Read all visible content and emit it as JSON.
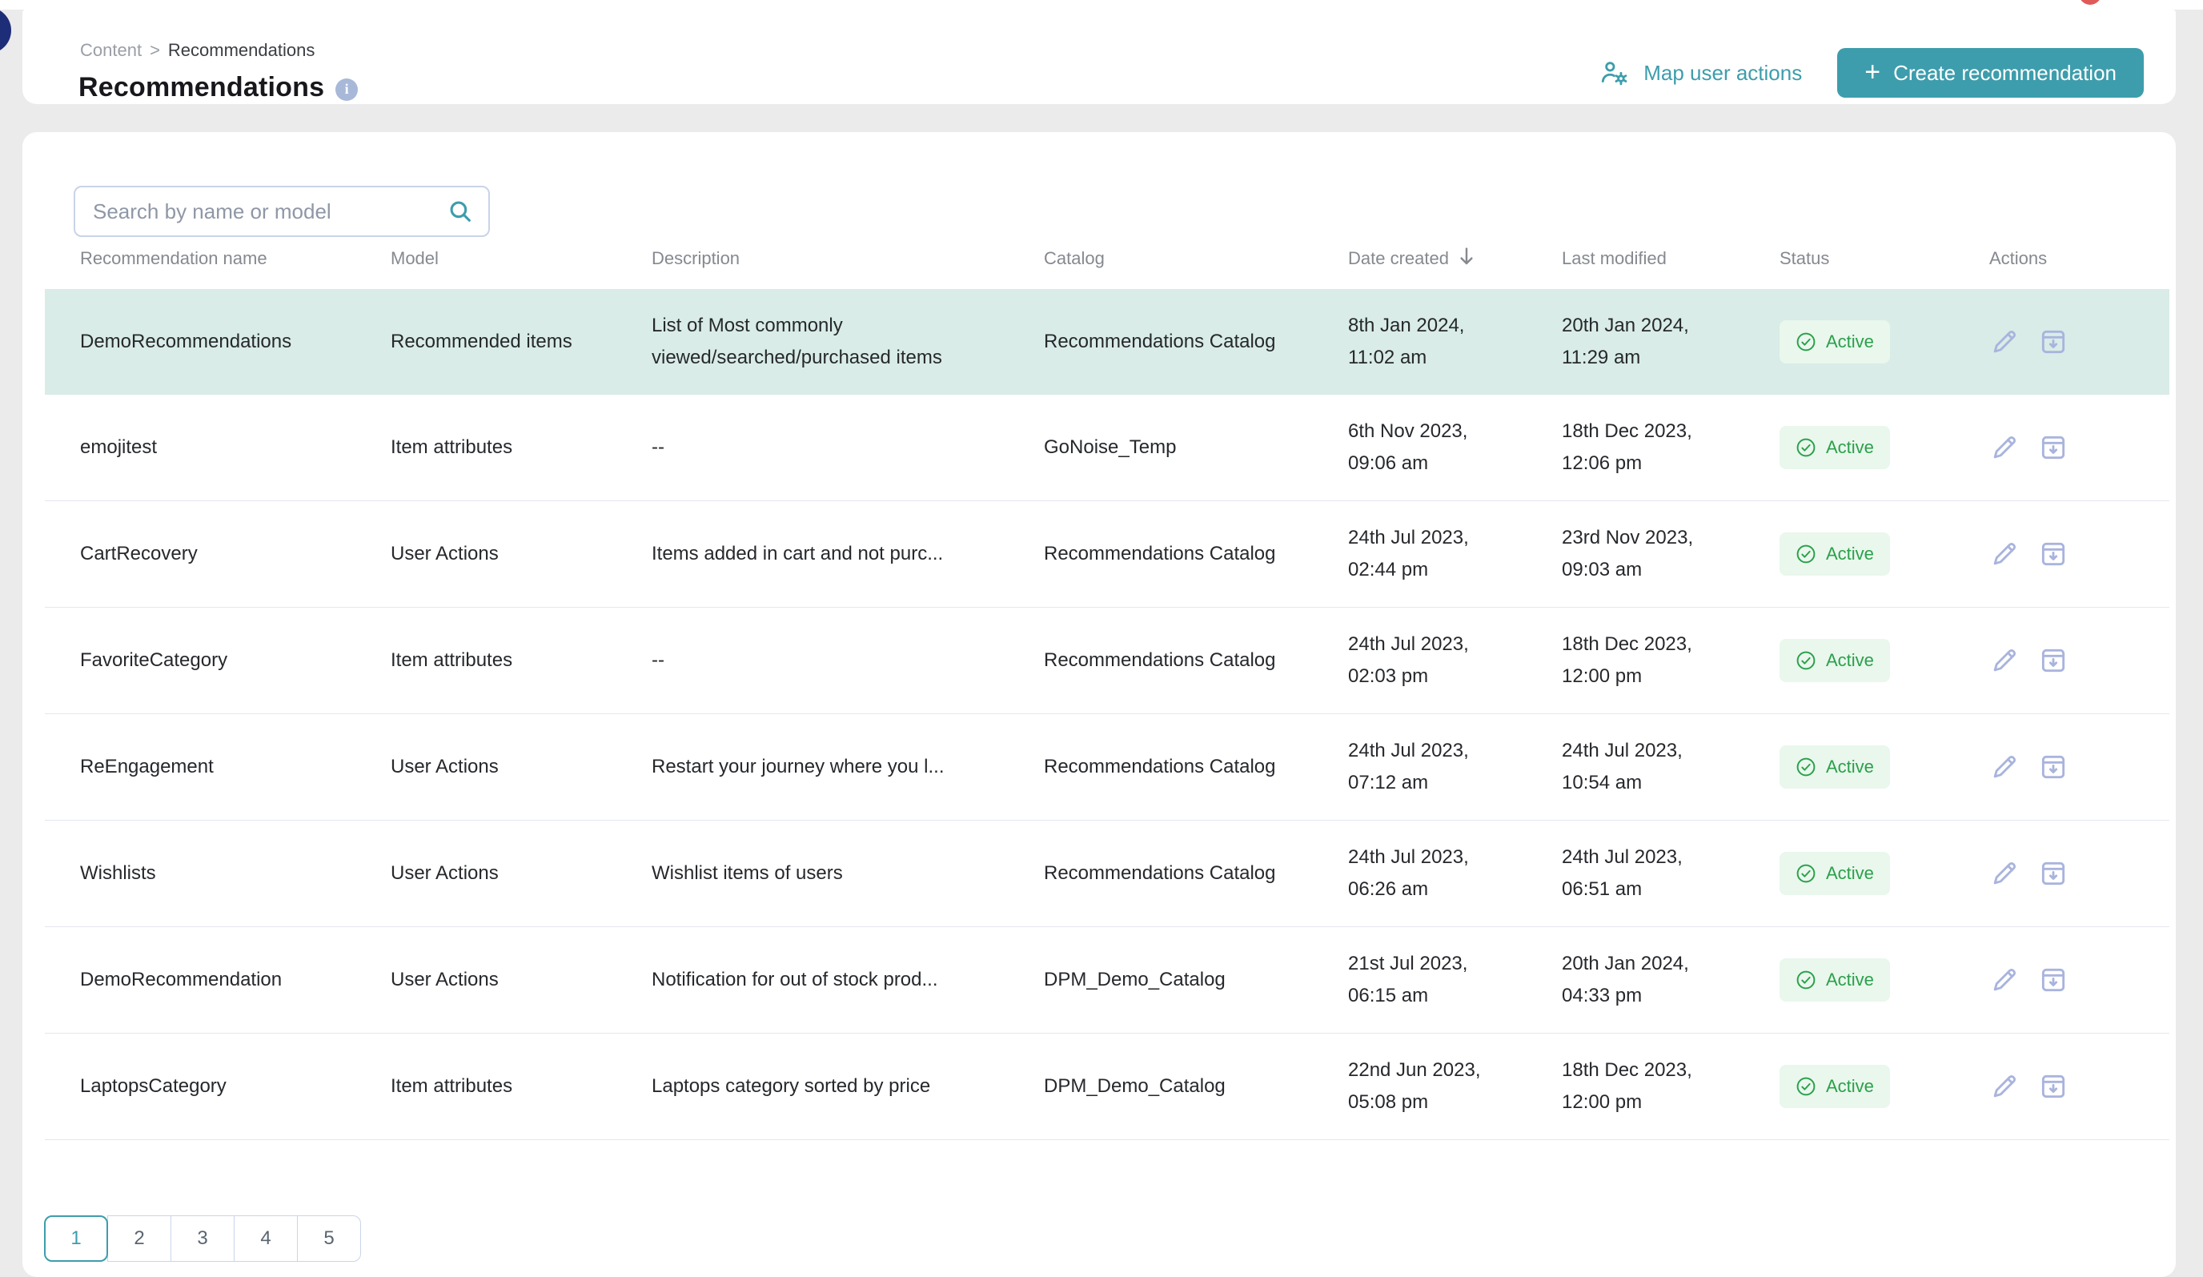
{
  "header": {
    "breadcrumb": {
      "parent": "Content",
      "separator": ">",
      "current": "Recommendations"
    },
    "title": "Recommendations",
    "map_user_actions_label": "Map user actions",
    "create_button_label": "Create recommendation",
    "plus_glyph": "+"
  },
  "search": {
    "placeholder": "Search by name or model",
    "value": ""
  },
  "table": {
    "columns": [
      "Recommendation name",
      "Model",
      "Description",
      "Catalog",
      "Date created",
      "Last modified",
      "Status",
      "Actions"
    ],
    "sorted_column": "Date created",
    "sort_direction": "descending",
    "rows": [
      {
        "name": "DemoRecommendations",
        "model": "Recommended items",
        "description": "List of Most commonly viewed/searched/purchased items",
        "catalog": "Recommendations Catalog",
        "created": [
          "8th Jan 2024,",
          "11:02 am"
        ],
        "modified": [
          "20th Jan 2024,",
          "11:29 am"
        ],
        "status": "Active",
        "highlighted": true
      },
      {
        "name": "emojitest",
        "model": "Item attributes",
        "description": "--",
        "catalog": "GoNoise_Temp",
        "created": [
          "6th Nov 2023,",
          "09:06 am"
        ],
        "modified": [
          "18th Dec 2023,",
          "12:06 pm"
        ],
        "status": "Active",
        "highlighted": false
      },
      {
        "name": "CartRecovery",
        "model": "User Actions",
        "description": "Items added in cart and not purc...",
        "catalog": "Recommendations Catalog",
        "created": [
          "24th Jul 2023,",
          "02:44 pm"
        ],
        "modified": [
          "23rd Nov 2023,",
          "09:03 am"
        ],
        "status": "Active",
        "highlighted": false
      },
      {
        "name": "FavoriteCategory",
        "model": "Item attributes",
        "description": "--",
        "catalog": "Recommendations Catalog",
        "created": [
          "24th Jul 2023,",
          "02:03 pm"
        ],
        "modified": [
          "18th Dec 2023,",
          "12:00 pm"
        ],
        "status": "Active",
        "highlighted": false
      },
      {
        "name": "ReEngagement",
        "model": "User Actions",
        "description": "Restart your journey where you l...",
        "catalog": "Recommendations Catalog",
        "created": [
          "24th Jul 2023,",
          "07:12 am"
        ],
        "modified": [
          "24th Jul 2023,",
          "10:54 am"
        ],
        "status": "Active",
        "highlighted": false
      },
      {
        "name": "Wishlists",
        "model": "User Actions",
        "description": "Wishlist items of users",
        "catalog": "Recommendations Catalog",
        "created": [
          "24th Jul 2023,",
          "06:26 am"
        ],
        "modified": [
          "24th Jul 2023,",
          "06:51 am"
        ],
        "status": "Active",
        "highlighted": false
      },
      {
        "name": "DemoRecommendation",
        "model": "User Actions",
        "description": "Notification for out of stock prod...",
        "catalog": "DPM_Demo_Catalog",
        "created": [
          "21st Jul 2023,",
          "06:15 am"
        ],
        "modified": [
          "20th Jan 2024,",
          "04:33 pm"
        ],
        "status": "Active",
        "highlighted": false
      },
      {
        "name": "LaptopsCategory",
        "model": "Item attributes",
        "description": "Laptops category sorted by price",
        "catalog": "DPM_Demo_Catalog",
        "created": [
          "22nd Jun 2023,",
          "05:08 pm"
        ],
        "modified": [
          "18th Dec 2023,",
          "12:00 pm"
        ],
        "status": "Active",
        "highlighted": false
      }
    ]
  },
  "pagination": {
    "pages": [
      "1",
      "2",
      "3",
      "4",
      "5"
    ],
    "current_page": "1"
  },
  "icons": {
    "search": "magnifier",
    "info": "i",
    "map_user_actions": "person-with-gear",
    "plus": "+",
    "sort": "arrow-down",
    "status_check": "check-circle",
    "edit": "pencil",
    "archive": "box-arrow-down"
  },
  "colors": {
    "accent_teal": "#3d9dac",
    "status_green": "#2ba04a",
    "status_badge_bg": "#e9f7ed",
    "row_highlight": "#d9ece7",
    "action_icon": "#a9b4dd",
    "page_bg": "#ebebeb",
    "navy_circle": "#1e2d78",
    "notification_red": "#e05a5a"
  }
}
